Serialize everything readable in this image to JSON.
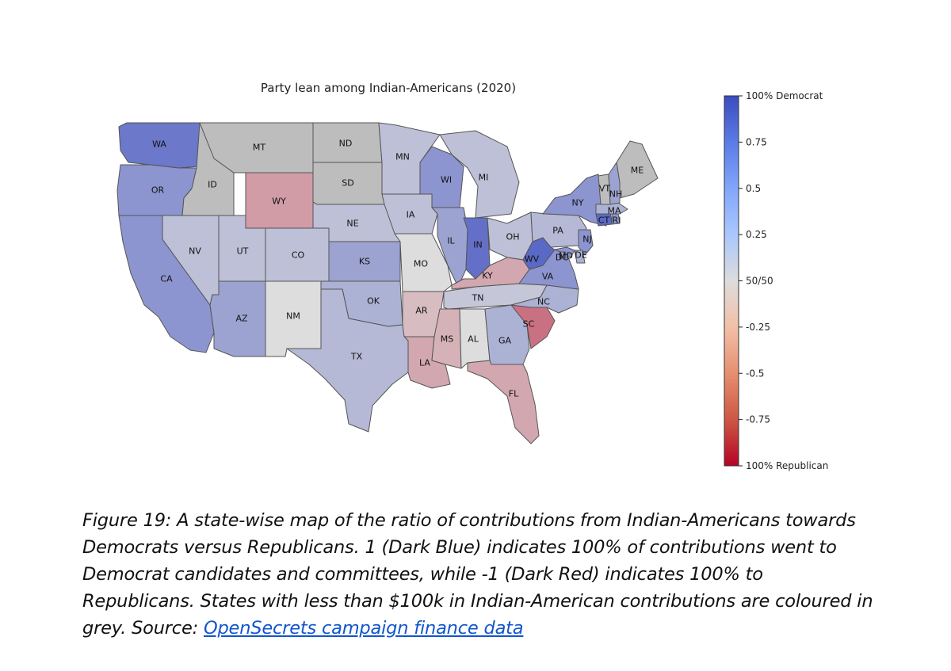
{
  "map": {
    "title": "Party lean among Indian-Americans (2020)",
    "states": [
      {
        "code": "WA",
        "label": "WA",
        "lean": 0.7,
        "grey": false
      },
      {
        "code": "OR",
        "label": "OR",
        "lean": 0.5,
        "grey": false
      },
      {
        "code": "CA",
        "label": "CA",
        "lean": 0.5,
        "grey": false
      },
      {
        "code": "ID",
        "label": "ID",
        "lean": null,
        "grey": true
      },
      {
        "code": "MT",
        "label": "MT",
        "lean": null,
        "grey": true
      },
      {
        "code": "WY",
        "label": "WY",
        "lean": -0.3,
        "grey": false
      },
      {
        "code": "NV",
        "label": "NV",
        "lean": 0.2,
        "grey": false
      },
      {
        "code": "UT",
        "label": "UT",
        "lean": 0.2,
        "grey": false
      },
      {
        "code": "CO",
        "label": "CO",
        "lean": 0.2,
        "grey": false
      },
      {
        "code": "AZ",
        "label": "AZ",
        "lean": 0.4,
        "grey": false
      },
      {
        "code": "NM",
        "label": "NM",
        "lean": 0.0,
        "grey": false
      },
      {
        "code": "ND",
        "label": "ND",
        "lean": null,
        "grey": true
      },
      {
        "code": "SD",
        "label": "SD",
        "lean": null,
        "grey": true
      },
      {
        "code": "NE",
        "label": "NE",
        "lean": 0.2,
        "grey": false
      },
      {
        "code": "KS",
        "label": "KS",
        "lean": 0.4,
        "grey": false
      },
      {
        "code": "OK",
        "label": "OK",
        "lean": 0.3,
        "grey": false
      },
      {
        "code": "TX",
        "label": "TX",
        "lean": 0.25,
        "grey": false
      },
      {
        "code": "MN",
        "label": "MN",
        "lean": 0.2,
        "grey": false
      },
      {
        "code": "IA",
        "label": "IA",
        "lean": 0.2,
        "grey": false
      },
      {
        "code": "MO",
        "label": "MO",
        "lean": 0.0,
        "grey": false
      },
      {
        "code": "AR",
        "label": "AR",
        "lean": -0.15,
        "grey": false
      },
      {
        "code": "LA",
        "label": "LA",
        "lean": -0.25,
        "grey": false
      },
      {
        "code": "WI",
        "label": "WI",
        "lean": 0.5,
        "grey": false
      },
      {
        "code": "IL",
        "label": "IL",
        "lean": 0.4,
        "grey": false
      },
      {
        "code": "MI",
        "label": "MI",
        "lean": 0.2,
        "grey": false
      },
      {
        "code": "IN",
        "label": "IN",
        "lean": 0.75,
        "grey": false
      },
      {
        "code": "OH",
        "label": "OH",
        "lean": 0.2,
        "grey": false
      },
      {
        "code": "KY",
        "label": "KY",
        "lean": -0.25,
        "grey": false
      },
      {
        "code": "TN",
        "label": "TN",
        "lean": 0.15,
        "grey": false
      },
      {
        "code": "MS",
        "label": "MS",
        "lean": -0.2,
        "grey": false
      },
      {
        "code": "AL",
        "label": "AL",
        "lean": 0.0,
        "grey": false
      },
      {
        "code": "GA",
        "label": "GA",
        "lean": 0.3,
        "grey": false
      },
      {
        "code": "FL",
        "label": "FL",
        "lean": -0.25,
        "grey": false
      },
      {
        "code": "SC",
        "label": "SC",
        "lean": -0.5,
        "grey": false
      },
      {
        "code": "NC",
        "label": "NC",
        "lean": 0.3,
        "grey": false
      },
      {
        "code": "VA",
        "label": "VA",
        "lean": 0.5,
        "grey": false
      },
      {
        "code": "WV",
        "label": "WV",
        "lean": 0.8,
        "grey": false
      },
      {
        "code": "PA",
        "label": "PA",
        "lean": 0.25,
        "grey": false
      },
      {
        "code": "NY",
        "label": "NY",
        "lean": 0.5,
        "grey": false
      },
      {
        "code": "NJ",
        "label": "NJ",
        "lean": 0.5,
        "grey": false
      },
      {
        "code": "MD",
        "label": "MD",
        "lean": 0.5,
        "grey": false
      },
      {
        "code": "DE",
        "label": "DE",
        "lean": 0.3,
        "grey": false
      },
      {
        "code": "DC",
        "label": "DC",
        "lean": 0.4,
        "grey": false
      },
      {
        "code": "CT",
        "label": "CT",
        "lean": 0.8,
        "grey": false
      },
      {
        "code": "RI",
        "label": "RI",
        "lean": 0.5,
        "grey": false
      },
      {
        "code": "MA",
        "label": "MA",
        "lean": 0.3,
        "grey": false
      },
      {
        "code": "VT",
        "label": "VT",
        "lean": null,
        "grey": true
      },
      {
        "code": "NH",
        "label": "NH",
        "lean": 0.4,
        "grey": false
      },
      {
        "code": "ME",
        "label": "ME",
        "lean": null,
        "grey": true
      }
    ]
  },
  "colorbar": {
    "ticks": [
      {
        "value": 1.0,
        "label": "100% Democrat"
      },
      {
        "value": 0.75,
        "label": "0.75"
      },
      {
        "value": 0.5,
        "label": "0.5"
      },
      {
        "value": 0.25,
        "label": "0.25"
      },
      {
        "value": 0.0,
        "label": "50/50"
      },
      {
        "value": -0.25,
        "label": "-0.25"
      },
      {
        "value": -0.5,
        "label": "-0.5"
      },
      {
        "value": -0.75,
        "label": "-0.75"
      },
      {
        "value": -1.0,
        "label": "100% Republican"
      }
    ],
    "colors": {
      "dem": "#3b4cc0",
      "neutral": "#dddddd",
      "rep": "#b40426",
      "grey": "#bdbdbd"
    }
  },
  "caption": {
    "text": "Figure 19: A state-wise map of the ratio of contributions from Indian-Americans towards Democrats versus Republicans. 1 (Dark Blue) indicates 100% of contributions went to Democrat candidates and committees, while -1 (Dark Red) indicates 100% to Republicans. States with less than $100k in Indian-American contributions are coloured in grey. Source: ",
    "link_text": "OpenSecrets campaign finance data"
  }
}
